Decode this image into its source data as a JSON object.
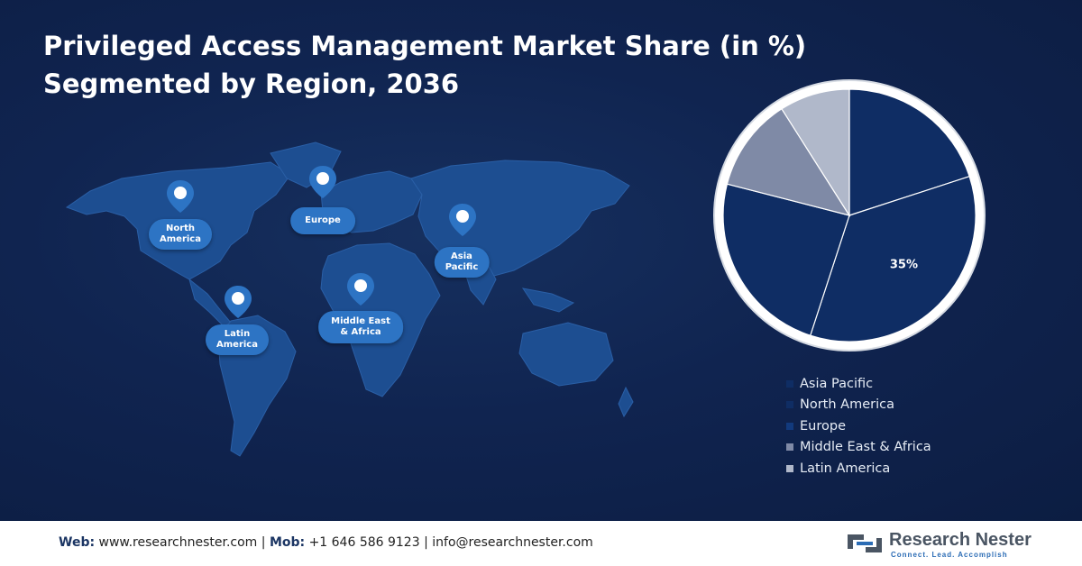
{
  "title": {
    "line1": "Privileged Access Management Market Share (in %)",
    "line2": "Segmented by Region, 2036"
  },
  "map": {
    "regions": [
      {
        "key": "north_america",
        "lines": [
          "North",
          "America"
        ]
      },
      {
        "key": "europe",
        "lines": [
          "Europe"
        ]
      },
      {
        "key": "asia_pacific",
        "lines": [
          "Asia",
          "Pacific"
        ]
      },
      {
        "key": "latin_america",
        "lines": [
          "Latin",
          "America"
        ]
      },
      {
        "key": "mea",
        "lines": [
          "Middle East",
          "& Africa"
        ]
      }
    ]
  },
  "chart_data": {
    "type": "pie",
    "categories": [
      "Asia Pacific",
      "North America",
      "Europe",
      "Middle East & Africa",
      "Latin America"
    ],
    "values": [
      20,
      35,
      24,
      12,
      9
    ],
    "data_labels": [
      "",
      "35%",
      "",
      "",
      ""
    ],
    "colors": [
      "#0f2d64",
      "#0f2d64",
      "#0f2d64",
      "#7f8aa6",
      "#b0b8ca"
    ],
    "legend_position": "bottom-right"
  },
  "colors": {
    "background": "#0e1f45",
    "pill": "#2d74c4",
    "map_land": "#1d4e91"
  },
  "footer": {
    "web_label": "Web:",
    "web_value": "www.researchnester.com",
    "sep1": "|",
    "mob_label": "Mob:",
    "mob_value": "+1 646 586 9123",
    "sep2": "|",
    "email": "info@researchnester.com",
    "brand_name": "Research Nester",
    "brand_tagline": "Connect. Lead. Accomplish"
  }
}
